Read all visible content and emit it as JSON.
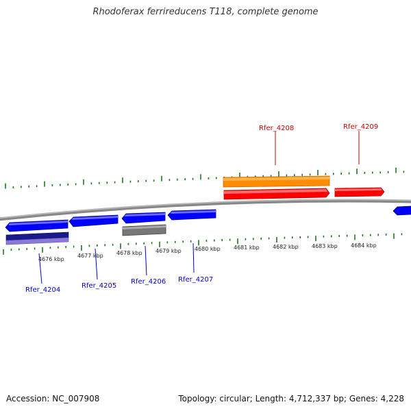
{
  "header": {
    "title": "Rhodoferax ferrireducens T118, complete genome"
  },
  "footer": {
    "accession": "Accession: NC_007908",
    "summary": "Topology: circular; Length: 4,712,337 bp; Genes: 4,228"
  },
  "colors": {
    "forward_cds": "#ff0000",
    "forward_gene": "#ff8c00",
    "reverse_cds": "#0000ff",
    "reverse_gene_pseudo": "#777777",
    "reverse_gene_dark": "#1a1a8c",
    "reverse_gene_light": "#8a7ad6",
    "backbone": "#888888",
    "tick": "#1a7a1a",
    "label_forward": "#cc0000",
    "label_reverse": "#0000cc"
  },
  "scale": {
    "unit": "kbp",
    "labels": [
      "4676 kbp",
      "4677 kbp",
      "4678 kbp",
      "4679 kbp",
      "4680 kbp",
      "4681 kbp",
      "4682 kbp",
      "4683 kbp",
      "4684 kbp"
    ]
  },
  "genes": {
    "forward": [
      {
        "name": "Rfer_4208"
      },
      {
        "name": "Rfer_4209"
      }
    ],
    "reverse": [
      {
        "name": "Rfer_4204"
      },
      {
        "name": "Rfer_4205"
      },
      {
        "name": "Rfer_4206"
      },
      {
        "name": "Rfer_4207"
      }
    ]
  }
}
